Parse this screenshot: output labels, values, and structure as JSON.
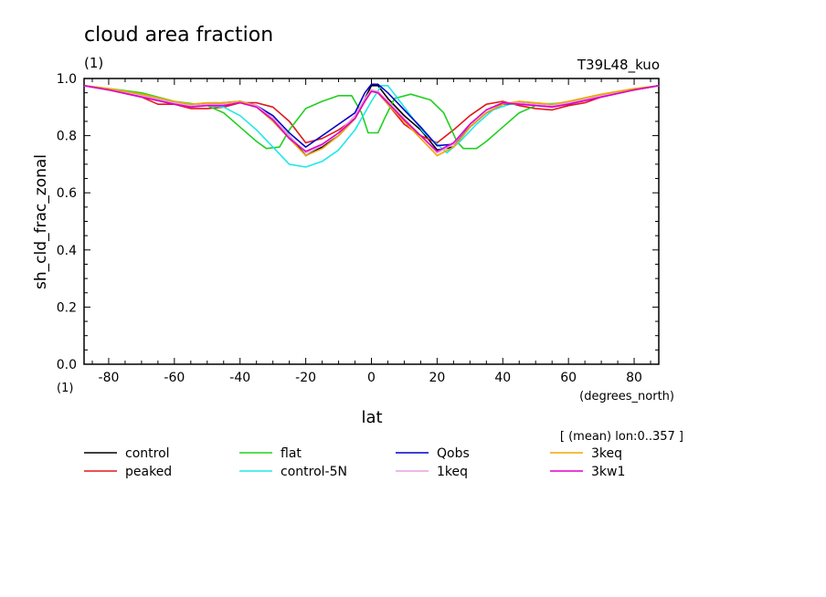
{
  "chart_data": {
    "type": "line",
    "title": "cloud area fraction",
    "units": "(1)",
    "run_label": "T39L48_kuo",
    "ylabel": "sh_cld_frac_zonal",
    "xlabel": "lat",
    "xunits": "(degrees_north)",
    "yunits": "(1)",
    "note": "[ (mean) lon:0..357 ]",
    "xlim": [
      -87.5,
      87.5
    ],
    "ylim": [
      0.0,
      1.0
    ],
    "xticks": [
      -80,
      -60,
      -40,
      -20,
      0,
      20,
      40,
      60,
      80
    ],
    "yticks": [
      "0.0",
      "0.2",
      "0.4",
      "0.6",
      "0.8",
      "1.0"
    ],
    "grid": false,
    "legend_position": "bottom",
    "series": [
      {
        "name": "control",
        "color": "#000000",
        "points": [
          [
            -87.5,
            0.975
          ],
          [
            -80,
            0.96
          ],
          [
            -70,
            0.94
          ],
          [
            -60,
            0.915
          ],
          [
            -55,
            0.905
          ],
          [
            -50,
            0.91
          ],
          [
            -45,
            0.91
          ],
          [
            -40,
            0.92
          ],
          [
            -35,
            0.905
          ],
          [
            -30,
            0.86
          ],
          [
            -25,
            0.8
          ],
          [
            -20,
            0.73
          ],
          [
            -15,
            0.76
          ],
          [
            -10,
            0.8
          ],
          [
            -5,
            0.86
          ],
          [
            -2,
            0.93
          ],
          [
            0,
            0.975
          ],
          [
            2,
            0.975
          ],
          [
            5,
            0.93
          ],
          [
            10,
            0.87
          ],
          [
            15,
            0.82
          ],
          [
            20,
            0.75
          ],
          [
            25,
            0.76
          ],
          [
            30,
            0.83
          ],
          [
            35,
            0.88
          ],
          [
            40,
            0.91
          ],
          [
            45,
            0.915
          ],
          [
            50,
            0.91
          ],
          [
            55,
            0.905
          ],
          [
            60,
            0.91
          ],
          [
            70,
            0.94
          ],
          [
            80,
            0.96
          ],
          [
            87.5,
            0.975
          ]
        ]
      },
      {
        "name": "peaked",
        "color": "#e01818",
        "points": [
          [
            -87.5,
            0.975
          ],
          [
            -80,
            0.96
          ],
          [
            -70,
            0.935
          ],
          [
            -65,
            0.91
          ],
          [
            -60,
            0.91
          ],
          [
            -55,
            0.895
          ],
          [
            -50,
            0.895
          ],
          [
            -45,
            0.9
          ],
          [
            -40,
            0.915
          ],
          [
            -35,
            0.915
          ],
          [
            -30,
            0.9
          ],
          [
            -25,
            0.85
          ],
          [
            -20,
            0.775
          ],
          [
            -15,
            0.79
          ],
          [
            -10,
            0.82
          ],
          [
            -5,
            0.86
          ],
          [
            -2,
            0.92
          ],
          [
            0,
            0.96
          ],
          [
            2,
            0.95
          ],
          [
            5,
            0.91
          ],
          [
            10,
            0.84
          ],
          [
            15,
            0.8
          ],
          [
            20,
            0.775
          ],
          [
            25,
            0.82
          ],
          [
            30,
            0.87
          ],
          [
            35,
            0.91
          ],
          [
            40,
            0.92
          ],
          [
            45,
            0.905
          ],
          [
            50,
            0.895
          ],
          [
            55,
            0.89
          ],
          [
            60,
            0.905
          ],
          [
            65,
            0.915
          ],
          [
            70,
            0.935
          ],
          [
            80,
            0.96
          ],
          [
            87.5,
            0.975
          ]
        ]
      },
      {
        "name": "flat",
        "color": "#20d020",
        "points": [
          [
            -87.5,
            0.975
          ],
          [
            -80,
            0.965
          ],
          [
            -70,
            0.95
          ],
          [
            -60,
            0.92
          ],
          [
            -50,
            0.905
          ],
          [
            -45,
            0.88
          ],
          [
            -40,
            0.83
          ],
          [
            -35,
            0.78
          ],
          [
            -32,
            0.755
          ],
          [
            -28,
            0.76
          ],
          [
            -25,
            0.82
          ],
          [
            -20,
            0.895
          ],
          [
            -15,
            0.92
          ],
          [
            -10,
            0.94
          ],
          [
            -6,
            0.94
          ],
          [
            -3,
            0.88
          ],
          [
            -1,
            0.81
          ],
          [
            2,
            0.81
          ],
          [
            4,
            0.86
          ],
          [
            7,
            0.93
          ],
          [
            12,
            0.945
          ],
          [
            18,
            0.925
          ],
          [
            22,
            0.88
          ],
          [
            26,
            0.78
          ],
          [
            28,
            0.755
          ],
          [
            32,
            0.755
          ],
          [
            35,
            0.78
          ],
          [
            40,
            0.83
          ],
          [
            45,
            0.88
          ],
          [
            50,
            0.905
          ],
          [
            60,
            0.915
          ],
          [
            70,
            0.94
          ],
          [
            80,
            0.96
          ],
          [
            87.5,
            0.975
          ]
        ]
      },
      {
        "name": "control-5N",
        "color": "#20e8e8",
        "points": [
          [
            -87.5,
            0.975
          ],
          [
            -80,
            0.96
          ],
          [
            -70,
            0.94
          ],
          [
            -60,
            0.915
          ],
          [
            -50,
            0.905
          ],
          [
            -45,
            0.9
          ],
          [
            -40,
            0.87
          ],
          [
            -35,
            0.82
          ],
          [
            -30,
            0.76
          ],
          [
            -25,
            0.7
          ],
          [
            -20,
            0.69
          ],
          [
            -15,
            0.71
          ],
          [
            -10,
            0.75
          ],
          [
            -5,
            0.82
          ],
          [
            0,
            0.92
          ],
          [
            3,
            0.975
          ],
          [
            5,
            0.975
          ],
          [
            8,
            0.93
          ],
          [
            12,
            0.87
          ],
          [
            16,
            0.81
          ],
          [
            20,
            0.77
          ],
          [
            23,
            0.74
          ],
          [
            27,
            0.78
          ],
          [
            32,
            0.84
          ],
          [
            37,
            0.89
          ],
          [
            42,
            0.91
          ],
          [
            50,
            0.91
          ],
          [
            60,
            0.915
          ],
          [
            70,
            0.94
          ],
          [
            80,
            0.96
          ],
          [
            87.5,
            0.975
          ]
        ]
      },
      {
        "name": "Qobs",
        "color": "#0000c8",
        "points": [
          [
            -87.5,
            0.975
          ],
          [
            -80,
            0.96
          ],
          [
            -70,
            0.94
          ],
          [
            -60,
            0.915
          ],
          [
            -55,
            0.905
          ],
          [
            -50,
            0.91
          ],
          [
            -45,
            0.915
          ],
          [
            -40,
            0.92
          ],
          [
            -35,
            0.905
          ],
          [
            -30,
            0.87
          ],
          [
            -25,
            0.81
          ],
          [
            -20,
            0.76
          ],
          [
            -15,
            0.8
          ],
          [
            -10,
            0.84
          ],
          [
            -5,
            0.88
          ],
          [
            -2,
            0.95
          ],
          [
            0,
            0.98
          ],
          [
            2,
            0.98
          ],
          [
            5,
            0.95
          ],
          [
            10,
            0.89
          ],
          [
            15,
            0.83
          ],
          [
            20,
            0.765
          ],
          [
            25,
            0.77
          ],
          [
            30,
            0.83
          ],
          [
            35,
            0.88
          ],
          [
            40,
            0.91
          ],
          [
            45,
            0.915
          ],
          [
            50,
            0.91
          ],
          [
            55,
            0.905
          ],
          [
            60,
            0.91
          ],
          [
            70,
            0.94
          ],
          [
            80,
            0.96
          ],
          [
            87.5,
            0.975
          ]
        ]
      },
      {
        "name": "1keq",
        "color": "#e8a0e0",
        "points": [
          [
            -87.5,
            0.975
          ],
          [
            -80,
            0.96
          ],
          [
            -70,
            0.94
          ],
          [
            -60,
            0.915
          ],
          [
            -55,
            0.905
          ],
          [
            -50,
            0.91
          ],
          [
            -45,
            0.91
          ],
          [
            -40,
            0.92
          ],
          [
            -35,
            0.905
          ],
          [
            -30,
            0.86
          ],
          [
            -25,
            0.8
          ],
          [
            -20,
            0.74
          ],
          [
            -15,
            0.765
          ],
          [
            -10,
            0.81
          ],
          [
            -5,
            0.87
          ],
          [
            -2,
            0.93
          ],
          [
            0,
            0.96
          ],
          [
            2,
            0.955
          ],
          [
            5,
            0.92
          ],
          [
            10,
            0.86
          ],
          [
            15,
            0.8
          ],
          [
            20,
            0.74
          ],
          [
            25,
            0.77
          ],
          [
            30,
            0.84
          ],
          [
            35,
            0.89
          ],
          [
            40,
            0.915
          ],
          [
            45,
            0.915
          ],
          [
            50,
            0.91
          ],
          [
            55,
            0.905
          ],
          [
            60,
            0.915
          ],
          [
            70,
            0.94
          ],
          [
            80,
            0.96
          ],
          [
            87.5,
            0.975
          ]
        ]
      },
      {
        "name": "3keq",
        "color": "#f0a800",
        "points": [
          [
            -87.5,
            0.975
          ],
          [
            -80,
            0.965
          ],
          [
            -70,
            0.945
          ],
          [
            -60,
            0.92
          ],
          [
            -55,
            0.91
          ],
          [
            -50,
            0.915
          ],
          [
            -45,
            0.915
          ],
          [
            -40,
            0.92
          ],
          [
            -35,
            0.9
          ],
          [
            -30,
            0.85
          ],
          [
            -25,
            0.79
          ],
          [
            -20,
            0.73
          ],
          [
            -15,
            0.755
          ],
          [
            -10,
            0.8
          ],
          [
            -5,
            0.86
          ],
          [
            -2,
            0.92
          ],
          [
            0,
            0.955
          ],
          [
            2,
            0.95
          ],
          [
            5,
            0.91
          ],
          [
            10,
            0.85
          ],
          [
            15,
            0.79
          ],
          [
            20,
            0.73
          ],
          [
            25,
            0.76
          ],
          [
            30,
            0.83
          ],
          [
            35,
            0.88
          ],
          [
            40,
            0.91
          ],
          [
            45,
            0.92
          ],
          [
            50,
            0.915
          ],
          [
            55,
            0.91
          ],
          [
            60,
            0.92
          ],
          [
            70,
            0.945
          ],
          [
            80,
            0.965
          ],
          [
            87.5,
            0.975
          ]
        ]
      },
      {
        "name": "3kw1",
        "color": "#e000c8",
        "points": [
          [
            -87.5,
            0.975
          ],
          [
            -80,
            0.96
          ],
          [
            -70,
            0.935
          ],
          [
            -60,
            0.91
          ],
          [
            -55,
            0.9
          ],
          [
            -50,
            0.905
          ],
          [
            -45,
            0.905
          ],
          [
            -40,
            0.915
          ],
          [
            -35,
            0.9
          ],
          [
            -30,
            0.855
          ],
          [
            -25,
            0.79
          ],
          [
            -20,
            0.745
          ],
          [
            -15,
            0.77
          ],
          [
            -10,
            0.81
          ],
          [
            -5,
            0.86
          ],
          [
            -2,
            0.92
          ],
          [
            0,
            0.955
          ],
          [
            2,
            0.95
          ],
          [
            5,
            0.915
          ],
          [
            10,
            0.855
          ],
          [
            15,
            0.8
          ],
          [
            20,
            0.745
          ],
          [
            25,
            0.775
          ],
          [
            30,
            0.84
          ],
          [
            35,
            0.89
          ],
          [
            40,
            0.915
          ],
          [
            45,
            0.91
          ],
          [
            50,
            0.905
          ],
          [
            55,
            0.9
          ],
          [
            60,
            0.91
          ],
          [
            70,
            0.935
          ],
          [
            80,
            0.96
          ],
          [
            87.5,
            0.975
          ]
        ]
      }
    ]
  }
}
